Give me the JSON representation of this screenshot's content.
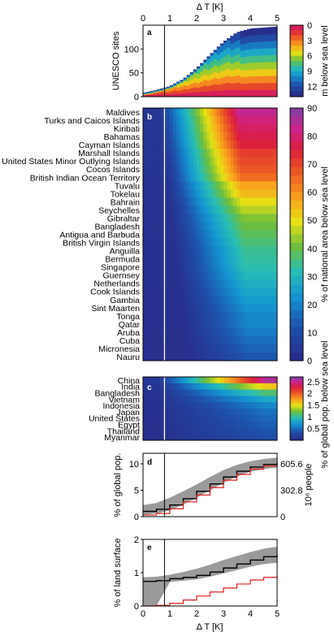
{
  "chart_data": [
    {
      "panel": "a",
      "type": "area",
      "xlabel": "Δ T [K]",
      "ylabel": "UNESCO sites",
      "xlim": [
        0,
        5
      ],
      "ylim": [
        0,
        150
      ],
      "xticks": [
        "0",
        "1",
        "2",
        "3",
        "4",
        "5"
      ],
      "yticks": [
        "0",
        "50",
        "100"
      ],
      "colorbar": {
        "label": "m below sea level",
        "ticks": [
          "0",
          "3",
          "6",
          "9",
          "12"
        ],
        "range": [
          0,
          14
        ]
      },
      "x": [
        0.0,
        0.5,
        1.0,
        1.5,
        2.0,
        2.5,
        3.0,
        3.5,
        4.0,
        4.5,
        5.0
      ],
      "total_sites": [
        8,
        14,
        22,
        37,
        60,
        88,
        115,
        135,
        143,
        145,
        147
      ],
      "reference_line_x": 0.8
    },
    {
      "panel": "b",
      "type": "heatmap",
      "colorbar": {
        "label": "% of national area below sea level",
        "ticks": [
          "0",
          "10",
          "20",
          "30",
          "40",
          "50",
          "60",
          "70",
          "80",
          "90"
        ],
        "range": [
          0,
          90
        ]
      },
      "xlim": [
        0,
        5
      ],
      "categories": [
        "Maldives",
        "Turks and Caicos Islands",
        "Kiribati",
        "Bahamas",
        "Cayman Islands",
        "Marshall Islands",
        "United States Minor Outlying Islands",
        "Cocos Islands",
        "British Indian Ocean Territory",
        "Tuvalu",
        "Tokelau",
        "Bahrain",
        "Seychelles",
        "Gibraltar",
        "Bangladesh",
        "Antigua and Barbuda",
        "British Virgin Islands",
        "Anguilla",
        "Bermuda",
        "Singapore",
        "Guernsey",
        "Netherlands",
        "Cook Islands",
        "Gambia",
        "Sint Maarten",
        "Tonga",
        "Qatar",
        "Aruba",
        "Cuba",
        "Micronesia",
        "Nauru"
      ],
      "row_max": [
        85,
        82,
        80,
        78,
        76,
        72,
        70,
        68,
        65,
        58,
        55,
        50,
        46,
        42,
        40,
        38,
        36,
        34,
        33,
        32,
        30,
        28,
        26,
        24,
        22,
        20,
        20,
        18,
        16,
        14,
        12
      ],
      "reference_line_x": 0.8
    },
    {
      "panel": "c",
      "type": "heatmap",
      "colorbar": {
        "label": "% of global pop. below sea level",
        "ticks": [
          "0.5",
          "1",
          "1.5",
          "2",
          "2.5"
        ],
        "range": [
          0,
          2.7
        ]
      },
      "xlim": [
        0,
        5
      ],
      "categories": [
        "China",
        "India",
        "Bangladesh",
        "Vietnam",
        "Indonesia",
        "Japan",
        "United States",
        "Egypt",
        "Thailand",
        "Myanmar"
      ],
      "row_max": [
        2.6,
        1.6,
        1.1,
        0.8,
        0.6,
        0.5,
        0.45,
        0.4,
        0.35,
        0.3
      ],
      "reference_line_x": 0.8
    },
    {
      "panel": "d",
      "type": "line",
      "ylabel": "% of global pop.",
      "ylabel_right": "10⁶ people",
      "xlim": [
        0,
        5
      ],
      "ylim": [
        0,
        12
      ],
      "yticks": [
        "0",
        "5",
        "10"
      ],
      "yticks_right": [
        "0",
        "302.8",
        "605.6"
      ],
      "x": [
        0.0,
        0.5,
        1.0,
        1.5,
        2.0,
        2.5,
        3.0,
        3.5,
        4.0,
        4.5,
        5.0
      ],
      "series": [
        {
          "values": [
            1.0,
            1.4,
            2.2,
            3.4,
            4.8,
            6.2,
            7.5,
            8.6,
            9.4,
            9.9,
            10.2
          ],
          "lower": [
            0.3,
            0.6,
            1.2,
            2.3,
            3.6,
            5.0,
            6.4,
            7.6,
            8.5,
            9.0,
            9.3
          ],
          "upper": [
            2.2,
            2.6,
            3.6,
            4.8,
            6.1,
            7.5,
            8.8,
            9.8,
            10.5,
            10.9,
            11.2
          ]
        },
        {
          "values": [
            0.3,
            0.6,
            1.5,
            2.8,
            4.1,
            5.5,
            6.9,
            8.0,
            9.0,
            9.6,
            9.9
          ]
        }
      ],
      "reference_line_x": 0.8
    },
    {
      "panel": "e",
      "type": "line",
      "ylabel": "% of land surface",
      "xlabel": "Δ T [K]",
      "xlim": [
        0,
        5
      ],
      "ylim": [
        0,
        2
      ],
      "yticks": [
        "0",
        "1",
        "2"
      ],
      "xticks": [
        "0",
        "1",
        "2",
        "3",
        "4",
        "5"
      ],
      "x": [
        0.0,
        0.5,
        1.0,
        1.5,
        2.0,
        2.5,
        3.0,
        3.5,
        4.0,
        4.5,
        5.0
      ],
      "series": [
        {
          "values": [
            0.74,
            0.76,
            0.82,
            0.86,
            0.92,
            1.02,
            1.14,
            1.26,
            1.38,
            1.48,
            1.54
          ],
          "lower": [
            0.0,
            0.0,
            0.72,
            0.76,
            0.8,
            0.88,
            0.98,
            1.08,
            1.18,
            1.26,
            1.3
          ],
          "upper": [
            0.86,
            0.88,
            0.94,
            1.02,
            1.12,
            1.24,
            1.38,
            1.5,
            1.62,
            1.72,
            1.78
          ]
        },
        {
          "values": [
            0.0,
            0.02,
            0.08,
            0.18,
            0.3,
            0.42,
            0.54,
            0.66,
            0.78,
            0.86,
            0.9
          ]
        }
      ],
      "reference_line_x": 0.8
    }
  ]
}
